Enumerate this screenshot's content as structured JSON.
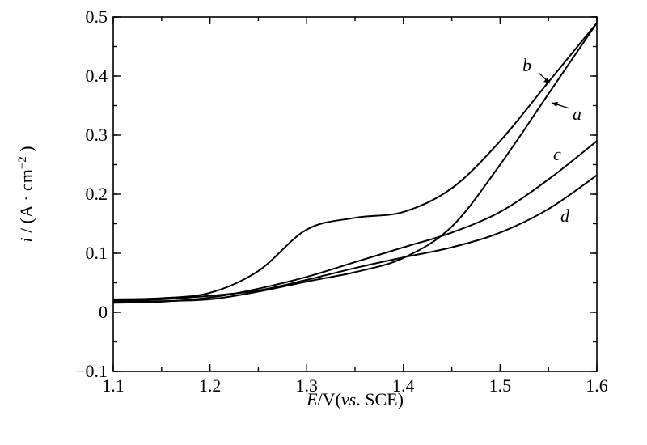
{
  "chart_data": {
    "type": "line",
    "x_ticks": [
      1.1,
      1.2,
      1.3,
      1.4,
      1.5,
      1.6
    ],
    "y_ticks": [
      -0.1,
      0,
      0.1,
      0.2,
      0.3,
      0.4,
      0.5
    ],
    "x_tick_labels": [
      "1.1",
      "1.2",
      "1.3",
      "1.4",
      "1.5",
      "1.6"
    ],
    "y_tick_labels": [
      "−0.1",
      "0",
      "0.1",
      "0.2",
      "0.3",
      "0.4",
      "0.5"
    ],
    "xlim": [
      1.1,
      1.6
    ],
    "ylim": [
      -0.1,
      0.5
    ],
    "x_minor_step": 0.05,
    "y_minor_step": 0.05,
    "grid": false,
    "xlabel": {
      "var": "E",
      "unit": "V",
      "ref_italic": "vs",
      "ref": "SCE"
    },
    "ylabel": {
      "var": "i",
      "unit": "A",
      "unit2": "cm",
      "exponent": "−2"
    },
    "series": [
      {
        "name": "a",
        "x": [
          1.1,
          1.15,
          1.2,
          1.25,
          1.3,
          1.35,
          1.4,
          1.45,
          1.5,
          1.55,
          1.6
        ],
        "y": [
          0.018,
          0.019,
          0.022,
          0.035,
          0.052,
          0.068,
          0.092,
          0.145,
          0.25,
          0.37,
          0.49
        ]
      },
      {
        "name": "b",
        "x": [
          1.1,
          1.15,
          1.2,
          1.25,
          1.3,
          1.35,
          1.4,
          1.45,
          1.5,
          1.55,
          1.6
        ],
        "y": [
          0.022,
          0.024,
          0.033,
          0.07,
          0.14,
          0.16,
          0.17,
          0.21,
          0.29,
          0.39,
          0.49
        ]
      },
      {
        "name": "c",
        "x": [
          1.1,
          1.15,
          1.2,
          1.25,
          1.3,
          1.35,
          1.4,
          1.45,
          1.5,
          1.55,
          1.6
        ],
        "y": [
          0.016,
          0.018,
          0.025,
          0.04,
          0.06,
          0.085,
          0.11,
          0.135,
          0.17,
          0.225,
          0.29
        ]
      },
      {
        "name": "d",
        "x": [
          1.1,
          1.15,
          1.2,
          1.25,
          1.3,
          1.35,
          1.4,
          1.45,
          1.5,
          1.55,
          1.6
        ],
        "y": [
          0.02,
          0.022,
          0.028,
          0.037,
          0.055,
          0.075,
          0.093,
          0.11,
          0.135,
          0.175,
          0.232
        ]
      }
    ]
  }
}
